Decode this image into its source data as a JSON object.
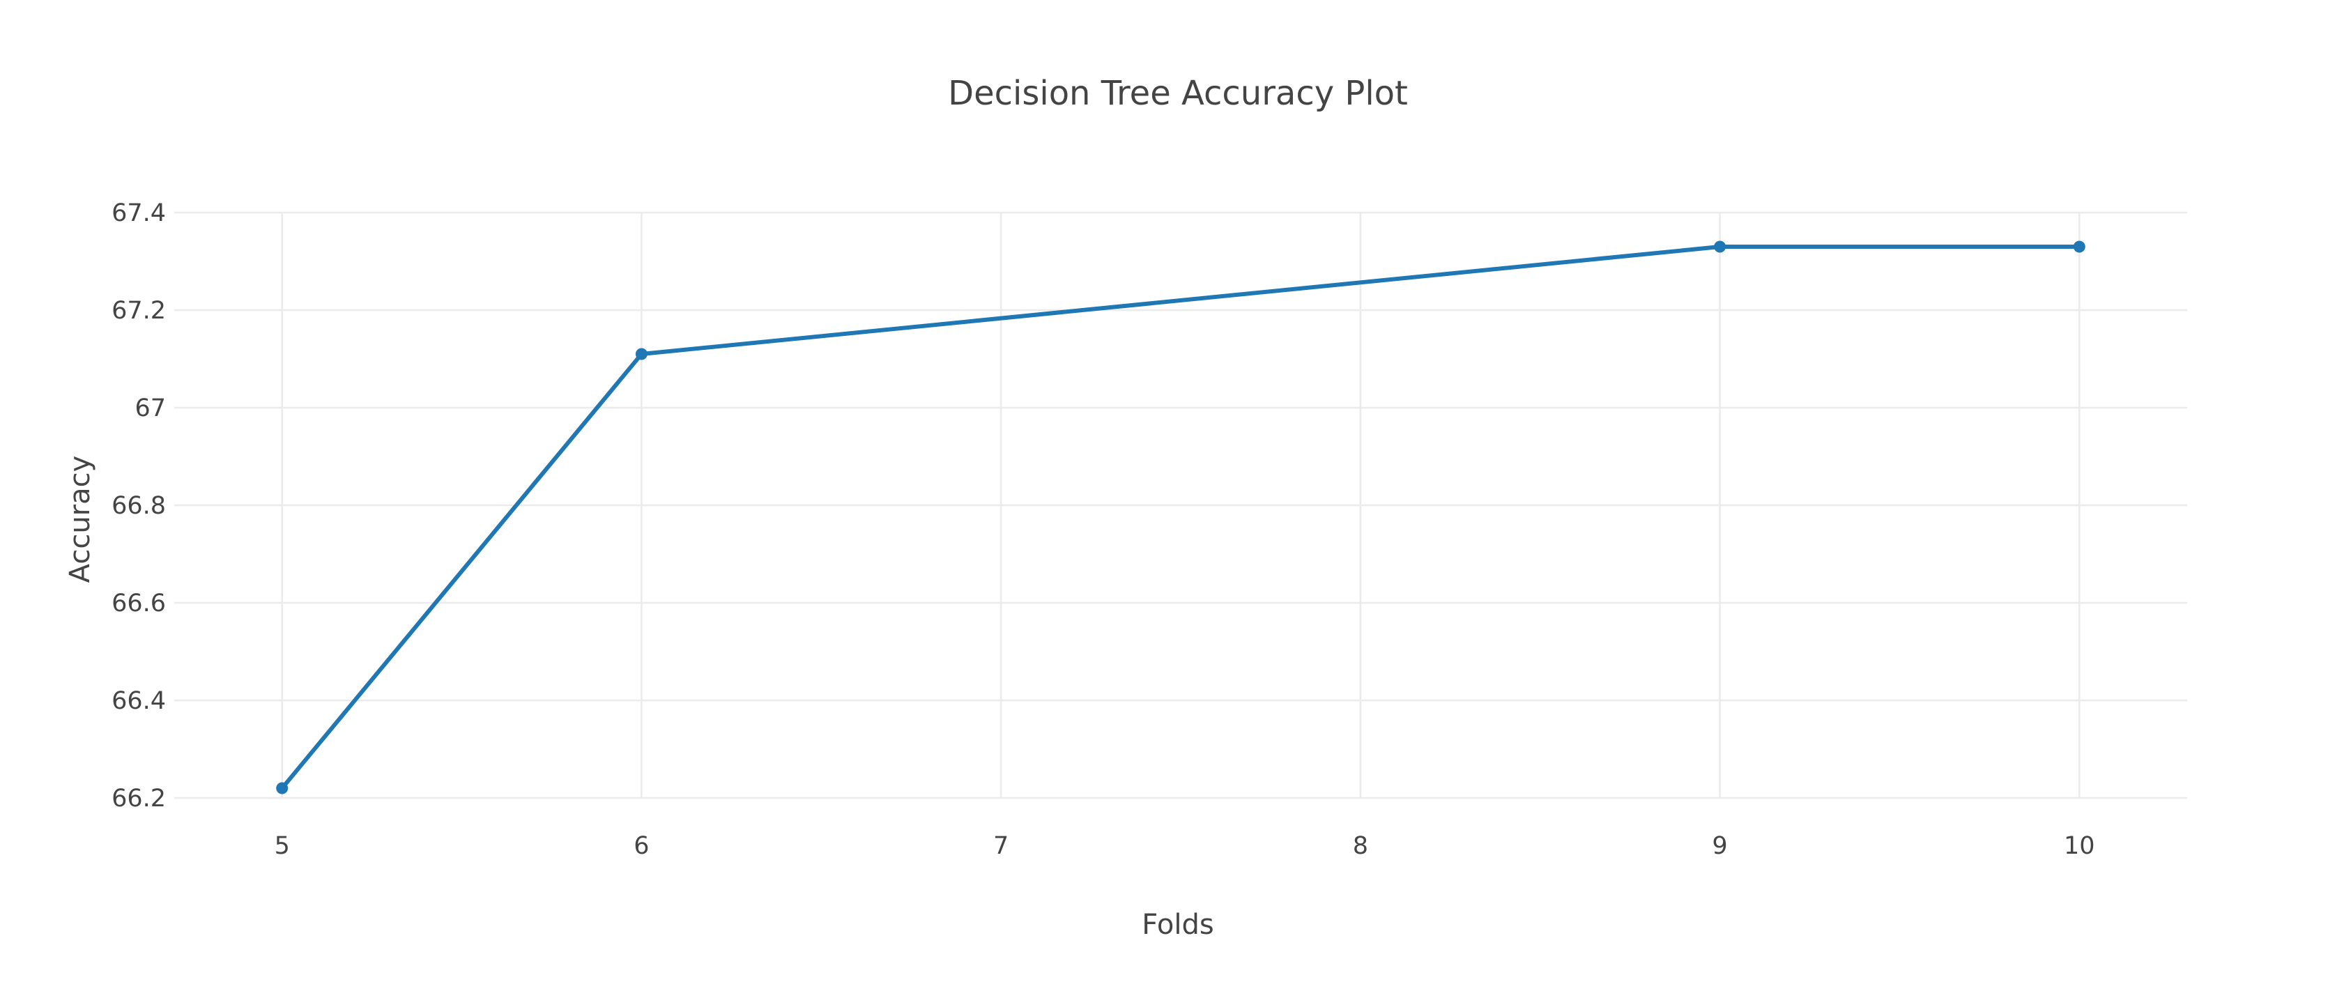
{
  "chart_data": {
    "type": "line",
    "title": "Decision Tree Accuracy Plot",
    "xlabel": "Folds",
    "ylabel": "Accuracy",
    "x": [
      5,
      6,
      9,
      10
    ],
    "series": [
      {
        "values": [
          66.22,
          67.11,
          67.33,
          67.33
        ],
        "color": "#1f77b4"
      }
    ],
    "xlim": [
      4.7,
      10.3
    ],
    "ylim": [
      66.2,
      67.4
    ],
    "xticks": [
      5,
      6,
      7,
      8,
      9,
      10
    ],
    "xtick_labels": [
      "5",
      "6",
      "7",
      "8",
      "9",
      "10"
    ],
    "yticks": [
      66.2,
      66.4,
      66.6,
      66.8,
      67,
      67.2,
      67.4
    ],
    "ytick_labels": [
      "66.2",
      "66.4",
      "66.6",
      "66.8",
      "67",
      "67.2",
      "67.4"
    ],
    "grid": true,
    "legend": false
  }
}
